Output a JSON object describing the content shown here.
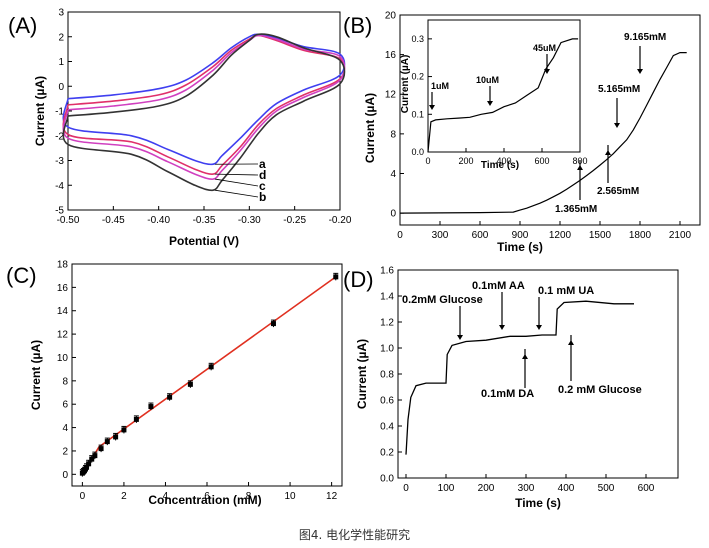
{
  "caption": "图4. 电化学性能研究",
  "chart_data": [
    {
      "panel": "(A)",
      "type": "line",
      "title": "",
      "xlabel": "Potential (V)",
      "ylabel": "Current (µA)",
      "xlim": [
        -0.5,
        -0.2
      ],
      "ylim": [
        -5,
        3
      ],
      "xticks": [
        "-0.50",
        "-0.45",
        "-0.40",
        "-0.35",
        "-0.30",
        "-0.25",
        "-0.20"
      ],
      "yticks": [
        "-5",
        "-4",
        "-3",
        "-2",
        "-1",
        "0",
        "1",
        "2",
        "3"
      ],
      "curve_labels": [
        "a",
        "d",
        "c",
        "b"
      ],
      "series": [
        {
          "name": "a",
          "color": "#3f3ff0",
          "upper": [
            [
              -0.5,
              -0.5
            ],
            [
              -0.45,
              -0.35
            ],
            [
              -0.4,
              -0.1
            ],
            [
              -0.37,
              0.25
            ],
            [
              -0.34,
              0.95
            ],
            [
              -0.32,
              1.55
            ],
            [
              -0.3,
              2.0
            ],
            [
              -0.29,
              2.1
            ],
            [
              -0.27,
              1.95
            ],
            [
              -0.24,
              1.6
            ],
            [
              -0.2,
              1.3
            ]
          ],
          "lower": [
            [
              -0.2,
              0.45
            ],
            [
              -0.24,
              -0.15
            ],
            [
              -0.27,
              -0.7
            ],
            [
              -0.29,
              -1.35
            ],
            [
              -0.31,
              -2.1
            ],
            [
              -0.33,
              -2.8
            ],
            [
              -0.34,
              -3.15
            ],
            [
              -0.36,
              -3.0
            ],
            [
              -0.39,
              -2.55
            ],
            [
              -0.43,
              -2.0
            ],
            [
              -0.5,
              -1.65
            ]
          ]
        },
        {
          "name": "d",
          "color": "#e0306a",
          "upper": [
            [
              -0.5,
              -0.75
            ],
            [
              -0.45,
              -0.6
            ],
            [
              -0.4,
              -0.35
            ],
            [
              -0.37,
              0.05
            ],
            [
              -0.34,
              0.8
            ],
            [
              -0.32,
              1.45
            ],
            [
              -0.3,
              1.9
            ],
            [
              -0.29,
              2.05
            ],
            [
              -0.27,
              1.85
            ],
            [
              -0.24,
              1.45
            ],
            [
              -0.2,
              1.1
            ]
          ],
          "lower": [
            [
              -0.2,
              0.3
            ],
            [
              -0.24,
              -0.35
            ],
            [
              -0.27,
              -0.9
            ],
            [
              -0.29,
              -1.55
            ],
            [
              -0.31,
              -2.45
            ],
            [
              -0.33,
              -3.2
            ],
            [
              -0.34,
              -3.55
            ],
            [
              -0.36,
              -3.35
            ],
            [
              -0.39,
              -2.85
            ],
            [
              -0.43,
              -2.25
            ],
            [
              -0.5,
              -1.95
            ]
          ]
        },
        {
          "name": "c",
          "color": "#d040c0",
          "upper": [
            [
              -0.5,
              -0.95
            ],
            [
              -0.45,
              -0.8
            ],
            [
              -0.4,
              -0.55
            ],
            [
              -0.37,
              -0.15
            ],
            [
              -0.34,
              0.65
            ],
            [
              -0.32,
              1.35
            ],
            [
              -0.3,
              1.85
            ],
            [
              -0.29,
              2.05
            ],
            [
              -0.27,
              1.9
            ],
            [
              -0.24,
              1.5
            ],
            [
              -0.2,
              1.2
            ]
          ],
          "lower": [
            [
              -0.2,
              0.25
            ],
            [
              -0.24,
              -0.45
            ],
            [
              -0.27,
              -1.0
            ],
            [
              -0.29,
              -1.7
            ],
            [
              -0.31,
              -2.6
            ],
            [
              -0.33,
              -3.4
            ],
            [
              -0.34,
              -3.75
            ],
            [
              -0.36,
              -3.55
            ],
            [
              -0.39,
              -3.05
            ],
            [
              -0.43,
              -2.45
            ],
            [
              -0.5,
              -2.1
            ]
          ]
        },
        {
          "name": "b",
          "color": "#333333",
          "upper": [
            [
              -0.5,
              -1.2
            ],
            [
              -0.45,
              -1.05
            ],
            [
              -0.4,
              -0.8
            ],
            [
              -0.37,
              -0.4
            ],
            [
              -0.34,
              0.45
            ],
            [
              -0.32,
              1.25
            ],
            [
              -0.3,
              1.85
            ],
            [
              -0.29,
              2.1
            ],
            [
              -0.27,
              2.0
            ],
            [
              -0.24,
              1.55
            ],
            [
              -0.2,
              1.05
            ]
          ],
          "lower": [
            [
              -0.2,
              0.1
            ],
            [
              -0.24,
              -0.6
            ],
            [
              -0.27,
              -1.15
            ],
            [
              -0.29,
              -1.9
            ],
            [
              -0.31,
              -2.9
            ],
            [
              -0.33,
              -3.8
            ],
            [
              -0.34,
              -4.2
            ],
            [
              -0.36,
              -4.0
            ],
            [
              -0.39,
              -3.45
            ],
            [
              -0.43,
              -2.75
            ],
            [
              -0.5,
              -2.35
            ]
          ]
        }
      ]
    },
    {
      "panel": "(B)",
      "type": "line",
      "xlabel": "Time (s)",
      "ylabel": "Current (µA)",
      "xlim": [
        0,
        2250
      ],
      "ylim": [
        -1.2,
        20
      ],
      "xticks": [
        "0",
        "300",
        "600",
        "900",
        "1200",
        "1500",
        "1800",
        "2100"
      ],
      "yticks": [
        "0",
        "4",
        "8",
        "12",
        "16",
        "20"
      ],
      "color": "#000000",
      "series": [
        {
          "name": "current",
          "values": [
            [
              0,
              0
            ],
            [
              600,
              0.05
            ],
            [
              850,
              0.1
            ],
            [
              900,
              0.3
            ],
            [
              950,
              0.5
            ],
            [
              1000,
              0.75
            ],
            [
              1050,
              1.0
            ],
            [
              1100,
              1.3
            ],
            [
              1150,
              1.65
            ],
            [
              1200,
              2.0
            ],
            [
              1250,
              2.4
            ],
            [
              1300,
              2.85
            ],
            [
              1350,
              3.3
            ],
            [
              1400,
              3.8
            ],
            [
              1450,
              4.3
            ],
            [
              1500,
              4.85
            ],
            [
              1550,
              5.4
            ],
            [
              1600,
              6.0
            ],
            [
              1650,
              6.7
            ],
            [
              1700,
              7.4
            ],
            [
              1750,
              8.4
            ],
            [
              1800,
              9.6
            ],
            [
              1850,
              10.9
            ],
            [
              1900,
              12.2
            ],
            [
              1950,
              13.5
            ],
            [
              2000,
              14.7
            ],
            [
              2050,
              15.9
            ],
            [
              2100,
              16.2
            ],
            [
              2150,
              16.2
            ]
          ]
        }
      ],
      "annotations": [
        {
          "text": "1.365mM",
          "x": 1500,
          "y": 4.8
        },
        {
          "text": "2.565mM",
          "x": 1700,
          "y": 7.1
        },
        {
          "text": "5.165mM",
          "x": 1790,
          "y": 9.3
        },
        {
          "text": "9.165mM",
          "x": 1950,
          "y": 14.1
        }
      ],
      "inset": {
        "xlabel": "Time (s)",
        "ylabel": "Current (µA)",
        "xlim": [
          0,
          800
        ],
        "ylim": [
          0,
          0.35
        ],
        "xticks": [
          "0",
          "200",
          "400",
          "600",
          "800"
        ],
        "yticks": [
          "0.0",
          "0.1",
          "0.2",
          "0.3"
        ],
        "values": [
          [
            0,
            0.0
          ],
          [
            15,
            0.08
          ],
          [
            40,
            0.085
          ],
          [
            100,
            0.088
          ],
          [
            160,
            0.09
          ],
          [
            220,
            0.092
          ],
          [
            280,
            0.1
          ],
          [
            340,
            0.105
          ],
          [
            400,
            0.12
          ],
          [
            460,
            0.13
          ],
          [
            520,
            0.15
          ],
          [
            580,
            0.17
          ],
          [
            620,
            0.22
          ],
          [
            660,
            0.25
          ],
          [
            700,
            0.29
          ],
          [
            760,
            0.3
          ],
          [
            790,
            0.3
          ]
        ],
        "annotations": [
          {
            "text": "1uM",
            "x": 20,
            "y": 0.085
          },
          {
            "text": "10uM",
            "x": 300,
            "y": 0.1
          },
          {
            "text": "45uM",
            "x": 610,
            "y": 0.22
          }
        ]
      }
    },
    {
      "panel": "(C)",
      "type": "scatter",
      "xlabel": "Concentration (mM)",
      "ylabel": "Current (µA)",
      "xlim": [
        -0.5,
        12.5
      ],
      "ylim": [
        -1,
        18
      ],
      "xticks": [
        "0",
        "2",
        "4",
        "6",
        "8",
        "10",
        "12"
      ],
      "yticks": [
        "0",
        "2",
        "4",
        "6",
        "8",
        "10",
        "12",
        "14",
        "16",
        "18"
      ],
      "x": [
        0.0,
        0.05,
        0.1,
        0.15,
        0.2,
        0.3,
        0.45,
        0.6,
        0.9,
        1.2,
        1.6,
        2.0,
        2.6,
        3.3,
        4.2,
        5.2,
        6.2,
        9.2,
        12.2
      ],
      "y": [
        0.1,
        0.2,
        0.3,
        0.45,
        0.6,
        0.9,
        1.3,
        1.6,
        2.2,
        2.8,
        3.2,
        3.8,
        4.7,
        5.8,
        6.6,
        7.7,
        9.2,
        12.9,
        16.9
      ],
      "fit_line": [
        [
          0.8,
          2.35
        ],
        [
          12.2,
          16.9
        ]
      ],
      "point_color": "#000000",
      "line_color": "#e03020"
    },
    {
      "panel": "(D)",
      "type": "line",
      "xlabel": "Time (s)",
      "ylabel": "Current (µA)",
      "xlim": [
        -20,
        680
      ],
      "ylim": [
        0.0,
        1.6
      ],
      "xticks": [
        "0",
        "100",
        "200",
        "300",
        "400",
        "500",
        "600"
      ],
      "yticks": [
        "0.0",
        "0.2",
        "0.4",
        "0.6",
        "0.8",
        "1.0",
        "1.2",
        "1.4",
        "1.6"
      ],
      "series": [
        {
          "name": "current",
          "values": [
            [
              0,
              0.18
            ],
            [
              5,
              0.45
            ],
            [
              12,
              0.62
            ],
            [
              25,
              0.71
            ],
            [
              50,
              0.73
            ],
            [
              100,
              0.73
            ],
            [
              103,
              0.95
            ],
            [
              115,
              1.02
            ],
            [
              150,
              1.05
            ],
            [
              200,
              1.06
            ],
            [
              260,
              1.09
            ],
            [
              300,
              1.09
            ],
            [
              340,
              1.1
            ],
            [
              375,
              1.1
            ],
            [
              378,
              1.3
            ],
            [
              395,
              1.35
            ],
            [
              450,
              1.36
            ],
            [
              520,
              1.34
            ],
            [
              570,
              1.34
            ]
          ]
        }
      ],
      "annotations": [
        {
          "text": "0.2mM Glucose",
          "x": 103
        },
        {
          "text": "0.1mM AA",
          "x": 205
        },
        {
          "text": "0.1 mM UA",
          "x": 300
        },
        {
          "text": "0.1mM DA",
          "x": 260
        },
        {
          "text": "0.2 mM Glucose",
          "x": 378
        }
      ]
    }
  ]
}
